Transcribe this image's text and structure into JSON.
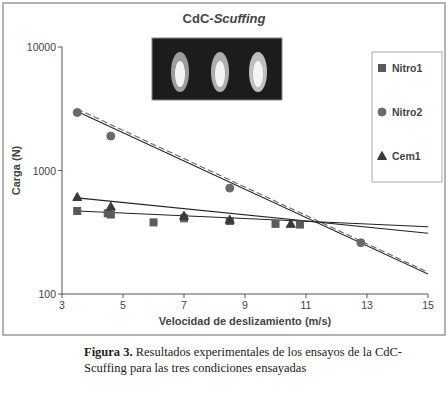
{
  "chart_data": {
    "type": "scatter",
    "title": "CdC-Scuffing",
    "x_label": "Velocidad de deslizamiento (m/s)",
    "y_label": "Carga (N)",
    "log": "y",
    "grid": false,
    "legend": "top-right",
    "xlim": [
      3,
      15
    ],
    "ylim": [
      100,
      10000
    ],
    "xticks": [
      3,
      5,
      7,
      9,
      11,
      13,
      15
    ],
    "yticks": [
      100,
      1000,
      10000
    ],
    "series": [
      {
        "name": "Nitro1",
        "color": "#5a5a5a",
        "marker": "square",
        "x": [
          3.5,
          4.5,
          4.6,
          6,
          7,
          8.5,
          10,
          10.8
        ],
        "values": [
          470,
          450,
          440,
          380,
          410,
          390,
          370,
          365
        ],
        "trend": [
          {
            "x": [
              3.5,
              15
            ],
            "values": [
              470,
              350
            ],
            "line_style": "solid"
          }
        ]
      },
      {
        "name": "Nitro2",
        "color": "#6a6a6a",
        "marker": "circle",
        "x": [
          3.5,
          4.6,
          8.5,
          12.8
        ],
        "values": [
          2950,
          1900,
          720,
          260
        ],
        "trend": [
          {
            "x": [
              3.5,
              15
            ],
            "values": [
              3000,
              145
            ],
            "line_style": "solid"
          },
          {
            "x": [
              3.5,
              15
            ],
            "values": [
              3150,
              150
            ],
            "line_style": "dashed"
          }
        ]
      },
      {
        "name": "Cem1",
        "color": "#3a3a3a",
        "marker": "triangle",
        "x": [
          3.5,
          4.6,
          7,
          8.5,
          10.5
        ],
        "values": [
          610,
          510,
          430,
          400,
          370
        ],
        "trend": [
          {
            "x": [
              3.5,
              15
            ],
            "values": [
              600,
              310
            ],
            "line_style": "solid"
          }
        ]
      }
    ]
  },
  "caption": {
    "label": "Figura 3.",
    "text": "Resultados experimentales de los ensayos de la CdC-Scuffing para las tres condiciones ensayadas"
  }
}
